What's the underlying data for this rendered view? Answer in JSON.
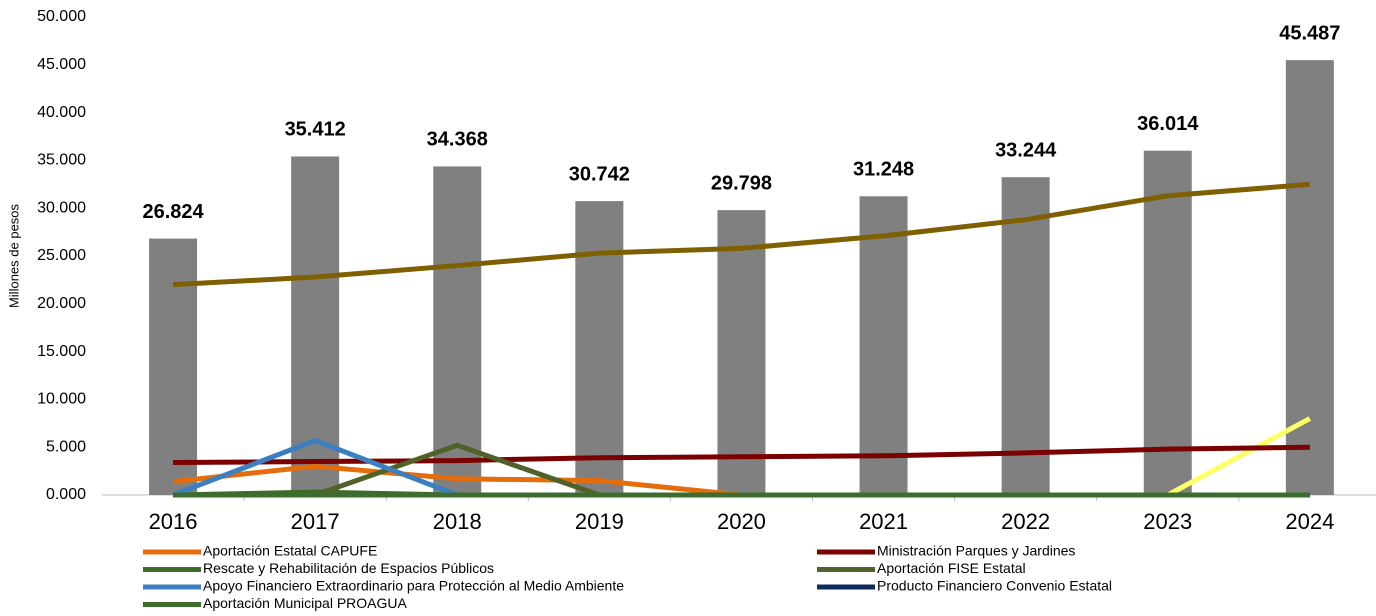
{
  "chart_data": {
    "type": "bar",
    "ylabel": "Millones de pesos",
    "categories": [
      "2016",
      "2017",
      "2018",
      "2019",
      "2020",
      "2021",
      "2022",
      "2023",
      "2024"
    ],
    "values": [
      26824,
      35412,
      34368,
      30742,
      29798,
      31248,
      33244,
      36014,
      45487
    ],
    "value_labels": [
      "26.824",
      "35.412",
      "34.368",
      "30.742",
      "29.798",
      "31.248",
      "33.244",
      "36.014",
      "45.487"
    ],
    "color": "#808080",
    "ylim": [
      0,
      50000
    ],
    "yticks": [
      {
        "value": 0,
        "label": "0.000"
      },
      {
        "value": 5000,
        "label": "5.000"
      },
      {
        "value": 10000,
        "label": "10.000"
      },
      {
        "value": 15000,
        "label": "15.000"
      },
      {
        "value": 20000,
        "label": "20.000"
      },
      {
        "value": 25000,
        "label": "25.000"
      },
      {
        "value": 30000,
        "label": "30.000"
      },
      {
        "value": 35000,
        "label": "35.000"
      },
      {
        "value": 40000,
        "label": "40.000"
      },
      {
        "value": 45000,
        "label": "45.000"
      },
      {
        "value": 50000,
        "label": "50.000"
      }
    ],
    "grid": false,
    "legend": "bottom",
    "lines": [
      {
        "color": "#7f6000",
        "values": [
          22000,
          22800,
          24000,
          25300,
          25800,
          27100,
          28800,
          31300,
          32500
        ]
      },
      {
        "color": "#ffff66",
        "values": [
          null,
          null,
          null,
          null,
          null,
          null,
          null,
          0,
          8000
        ]
      },
      {
        "name": "Aportación Estatal CAPUFE",
        "color": "#e46c0a",
        "values": [
          1400,
          3000,
          1700,
          1500,
          0,
          0,
          0,
          0,
          0
        ]
      },
      {
        "name": "Ministración Parques y Jardines",
        "color": "#7b0000",
        "values": [
          3400,
          3500,
          3600,
          3900,
          4000,
          4100,
          4400,
          4800,
          5000
        ]
      },
      {
        "name": "Rescate y Rehabilitación de Espacios Públicos",
        "color": "#3f6a2a",
        "values": [
          0,
          300,
          0,
          0,
          0,
          0,
          0,
          0,
          0
        ]
      },
      {
        "name": "Aportación FISE Estatal",
        "color": "#4f6228",
        "values": [
          0,
          0,
          5200,
          0,
          0,
          0,
          0,
          0,
          0
        ]
      },
      {
        "name": "Apoyo Financiero Extraordinario para Protección al Medio Ambiente",
        "color": "#3c7fc0",
        "values": [
          0,
          5700,
          0,
          null,
          null,
          null,
          null,
          null,
          null
        ]
      },
      {
        "name": "Producto Financiero Convenio Estatal",
        "color": "#0f2a5c",
        "values": [
          0,
          0,
          0,
          null,
          null,
          null,
          null,
          null,
          null
        ]
      },
      {
        "name": "Aportación Municipal PROAGUA",
        "color": "#3b6e2e",
        "values": [
          0,
          0,
          0,
          0,
          0,
          0,
          0,
          0,
          0
        ]
      }
    ]
  }
}
